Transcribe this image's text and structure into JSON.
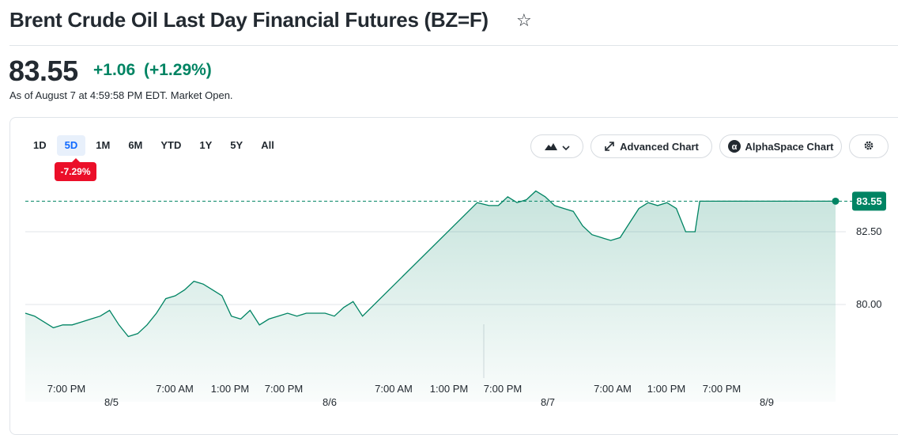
{
  "header": {
    "title": "Brent Crude Oil Last Day Financial Futures (BZ=F)",
    "star_icon": "star-outline-icon"
  },
  "quote": {
    "price": "83.55",
    "change": "+1.06",
    "change_pct": "(+1.29%)",
    "as_of": "As of August 7 at 4:59:58 PM EDT. Market Open.",
    "positive_color": "#008463"
  },
  "range_tabs": [
    "1D",
    "5D",
    "1M",
    "6M",
    "YTD",
    "1Y",
    "5Y",
    "All"
  ],
  "active_range": "5D",
  "period_change_badge": "-7.29%",
  "toolbar": {
    "chart_type_icon": "mountain-chart-icon",
    "advanced_label": "Advanced Chart",
    "alphaspace_label": "AlphaSpace Chart",
    "settings_icon": "gear-icon"
  },
  "chart_data": {
    "type": "area",
    "y_ticks": [
      "80.00",
      "82.50"
    ],
    "ylim": [
      77.5,
      85.0
    ],
    "current_price_label": "83.55",
    "grid": true,
    "x_time_labels": [
      "7:00 PM",
      "7:00 AM",
      "1:00 PM",
      "7:00 PM",
      "7:00 AM",
      "1:00 PM",
      "7:00 PM",
      "7:00 AM",
      "1:00 PM",
      "7:00 PM"
    ],
    "x_day_labels": [
      "8/5",
      "8/6",
      "8/7",
      "8/9"
    ],
    "series": [
      {
        "values": [
          [
            0,
            79.7
          ],
          [
            0.4,
            79.6
          ],
          [
            0.8,
            79.4
          ],
          [
            1.2,
            79.2
          ],
          [
            1.6,
            79.3
          ],
          [
            2.0,
            79.3
          ],
          [
            2.4,
            79.4
          ],
          [
            2.8,
            79.5
          ],
          [
            3.2,
            79.6
          ],
          [
            3.6,
            79.8
          ],
          [
            4.0,
            79.3
          ],
          [
            4.4,
            78.9
          ],
          [
            4.8,
            79.0
          ],
          [
            5.2,
            79.3
          ],
          [
            5.6,
            79.7
          ],
          [
            6.0,
            80.2
          ],
          [
            6.4,
            80.3
          ],
          [
            6.8,
            80.5
          ],
          [
            7.2,
            80.8
          ],
          [
            7.6,
            80.7
          ],
          [
            8.0,
            80.5
          ],
          [
            8.4,
            80.3
          ],
          [
            8.8,
            79.6
          ],
          [
            9.2,
            79.5
          ],
          [
            9.6,
            79.8
          ],
          [
            10.0,
            79.3
          ],
          [
            10.4,
            79.5
          ],
          [
            10.8,
            79.6
          ],
          [
            11.2,
            79.7
          ],
          [
            11.6,
            79.6
          ],
          [
            12.0,
            79.7
          ],
          [
            12.4,
            79.7
          ],
          [
            12.8,
            79.7
          ],
          [
            13.2,
            79.6
          ],
          [
            13.6,
            79.9
          ],
          [
            14.0,
            80.1
          ],
          [
            14.4,
            79.6
          ],
          [
            19.3,
            83.5
          ],
          [
            19.8,
            83.4
          ],
          [
            20.2,
            83.4
          ],
          [
            20.6,
            83.7
          ],
          [
            21.0,
            83.5
          ],
          [
            21.4,
            83.6
          ],
          [
            21.8,
            83.9
          ],
          [
            22.2,
            83.7
          ],
          [
            22.6,
            83.4
          ],
          [
            23.0,
            83.3
          ],
          [
            23.4,
            83.2
          ],
          [
            23.8,
            82.7
          ],
          [
            24.2,
            82.4
          ],
          [
            24.6,
            82.3
          ],
          [
            25.0,
            82.2
          ],
          [
            25.4,
            82.3
          ],
          [
            25.8,
            82.8
          ],
          [
            26.2,
            83.3
          ],
          [
            26.6,
            83.5
          ],
          [
            27.0,
            83.4
          ],
          [
            27.4,
            83.5
          ],
          [
            27.8,
            83.3
          ],
          [
            28.2,
            82.5
          ],
          [
            28.6,
            82.5
          ],
          [
            28.8,
            83.55
          ],
          [
            30.0,
            83.55
          ],
          [
            31.0,
            83.55
          ],
          [
            32.0,
            83.55
          ],
          [
            33.0,
            83.55
          ],
          [
            34.0,
            83.55
          ],
          [
            34.6,
            83.55
          ]
        ]
      }
    ]
  }
}
